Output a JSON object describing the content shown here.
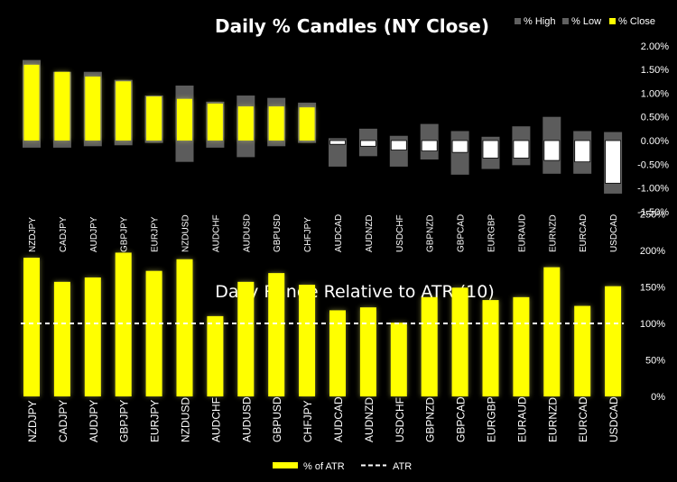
{
  "chart_data": [
    {
      "type": "bar",
      "title": "Daily % Candles (NY Close)",
      "categories": [
        "NZDJPY",
        "CADJPY",
        "AUDJPY",
        "GBPJPY",
        "EURJPY",
        "NZDUSD",
        "AUDCHF",
        "AUDUSD",
        "GBPUSD",
        "CHFJPY",
        "AUDCAD",
        "AUDNZD",
        "USDCHF",
        "GBPNZD",
        "GBPCAD",
        "EURGBP",
        "EURAUD",
        "EURNZD",
        "EURCAD",
        "USDCAD"
      ],
      "series": [
        {
          "name": "% High",
          "color": "#606060",
          "values": [
            1.7,
            1.45,
            1.45,
            1.28,
            0.95,
            1.16,
            0.82,
            0.95,
            0.9,
            0.8,
            0.05,
            0.25,
            0.1,
            0.35,
            0.2,
            0.08,
            0.3,
            0.5,
            0.2,
            0.18
          ]
        },
        {
          "name": "% Low",
          "color": "#606060",
          "values": [
            -0.15,
            -0.15,
            -0.12,
            -0.1,
            -0.05,
            -0.45,
            -0.15,
            -0.35,
            -0.12,
            -0.05,
            -0.55,
            -0.33,
            -0.55,
            -0.4,
            -0.72,
            -0.6,
            -0.52,
            -0.7,
            -0.7,
            -1.12
          ]
        },
        {
          "name": "% Close",
          "color": "#ffff00",
          "values": [
            1.6,
            1.45,
            1.35,
            1.25,
            0.93,
            0.88,
            0.78,
            0.72,
            0.72,
            0.7,
            -0.08,
            -0.12,
            -0.2,
            -0.22,
            -0.25,
            -0.37,
            -0.37,
            -0.42,
            -0.45,
            -0.9
          ]
        }
      ],
      "ylim": [
        -1.5,
        2.0
      ],
      "yticks": [
        "-1.50%",
        "-1.00%",
        "-0.50%",
        "0.00%",
        "0.50%",
        "1.00%",
        "1.50%",
        "2.00%"
      ],
      "legend": "top-right"
    },
    {
      "type": "bar",
      "title": "Daily Range Relative to ATR (10)",
      "categories": [
        "NZDJPY",
        "CADJPY",
        "AUDJPY",
        "GBPJPY",
        "EURJPY",
        "NZDUSD",
        "AUDCHF",
        "AUDUSD",
        "GBPUSD",
        "CHFJPY",
        "AUDCAD",
        "AUDNZD",
        "USDCHF",
        "GBPNZD",
        "GBPCAD",
        "EURGBP",
        "EURAUD",
        "EURNZD",
        "EURCAD",
        "USDCAD"
      ],
      "series": [
        {
          "name": "% of ATR",
          "color": "#ffff00",
          "values": [
            190,
            157,
            163,
            197,
            172,
            188,
            110,
            157,
            169,
            153,
            118,
            122,
            101,
            136,
            149,
            132,
            136,
            177,
            124,
            151
          ]
        },
        {
          "name": "ATR",
          "color": "#ffffff",
          "values": [
            100,
            100,
            100,
            100,
            100,
            100,
            100,
            100,
            100,
            100,
            100,
            100,
            100,
            100,
            100,
            100,
            100,
            100,
            100,
            100
          ]
        }
      ],
      "ylim": [
        0,
        250
      ],
      "yticks": [
        "0%",
        "50%",
        "100%",
        "150%",
        "200%",
        "250%"
      ],
      "legend": "bottom-center"
    }
  ]
}
